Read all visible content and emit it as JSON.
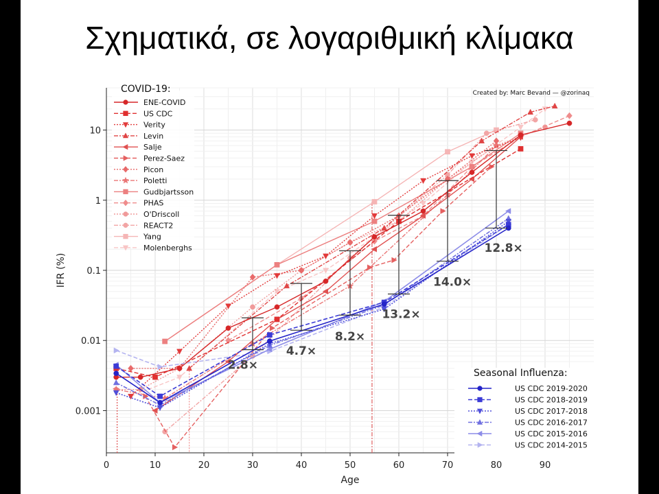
{
  "slide": {
    "title": "Σχηματικά, σε λογαριθμική κλίμακα"
  },
  "chart_data": {
    "type": "line",
    "xlabel": "Age",
    "ylabel": "IFR (%)",
    "xlim": [
      0,
      100
    ],
    "ylim": [
      0.00025,
      40
    ],
    "yscale": "log",
    "x_ticks": [
      0,
      10,
      20,
      30,
      40,
      50,
      60,
      70,
      80,
      90
    ],
    "y_ticks": [
      {
        "value": 0.001,
        "label": "0.001"
      },
      {
        "value": 0.01,
        "label": "0.01"
      },
      {
        "value": 0.1,
        "label": "0.1"
      },
      {
        "value": 1,
        "label": "1"
      },
      {
        "value": 10,
        "label": "10"
      }
    ],
    "grid": true,
    "credit": "Created by: Marc Bevand — @zorinaq",
    "covid_legend_title": "COVID-19:",
    "flu_legend_title": "Seasonal Influenza:",
    "covid_series": [
      {
        "name": "ENE-COVID",
        "color": "#d62728",
        "dash": "",
        "marker": "circle",
        "x": [
          2,
          7,
          15,
          25,
          35,
          45,
          55,
          65,
          75,
          85,
          95
        ],
        "y": [
          0.003,
          0.003,
          0.004,
          0.015,
          0.03,
          0.07,
          0.3,
          0.7,
          2.5,
          8.5,
          12.5
        ]
      },
      {
        "name": "US CDC",
        "color": "#e03030",
        "dash": "6,3",
        "marker": "square",
        "x": [
          2,
          10,
          35,
          60,
          85
        ],
        "y": [
          0.004,
          0.003,
          0.02,
          0.5,
          5.4
        ]
      },
      {
        "name": "Verity",
        "color": "#e23a3a",
        "dash": "2,2",
        "marker": "tri-down",
        "x": [
          5,
          15,
          25,
          35,
          45,
          55,
          65,
          75,
          85
        ],
        "y": [
          0.0016,
          0.007,
          0.031,
          0.084,
          0.16,
          0.6,
          1.9,
          4.3,
          7.8
        ]
      },
      {
        "name": "Levin",
        "color": "#e04545",
        "dash": "6,2,2,2",
        "marker": "tri-up",
        "x": [
          17,
          37,
          57,
          77,
          87,
          92
        ],
        "y": [
          0.004,
          0.06,
          0.4,
          7,
          18,
          22
        ]
      },
      {
        "name": "Salje",
        "color": "#e05050",
        "dash": "",
        "marker": "tri-left",
        "x": [
          10,
          25,
          35,
          45,
          55,
          65,
          75,
          85
        ],
        "y": [
          0.001,
          0.005,
          0.02,
          0.05,
          0.2,
          0.6,
          2,
          8
        ]
      },
      {
        "name": "Perez-Saez",
        "color": "#e56060",
        "dash": "6,3",
        "marker": "tri-right",
        "x": [
          8,
          14,
          34,
          54,
          59,
          69,
          79
        ],
        "y": [
          0.0016,
          0.0003,
          0.015,
          0.11,
          0.14,
          0.7,
          3
        ]
      },
      {
        "name": "Picon",
        "color": "#e86a6a",
        "dash": "2,2",
        "marker": "diamond",
        "x": [
          5,
          15,
          30,
          40,
          50,
          60,
          70,
          80
        ],
        "y": [
          0.004,
          0.004,
          0.08,
          0.1,
          0.25,
          0.6,
          2,
          7
        ]
      },
      {
        "name": "Poletti",
        "color": "#ea7575",
        "dash": "6,2,2,2",
        "marker": "star",
        "x": [
          2,
          12,
          30,
          50,
          70,
          80
        ],
        "y": [
          0.002,
          0.0015,
          0.009,
          0.06,
          1.2,
          6
        ]
      },
      {
        "name": "Gudbjartsson",
        "color": "#ec8080",
        "dash": "",
        "marker": "square",
        "x": [
          12,
          35,
          55,
          75,
          85
        ],
        "y": [
          0.0097,
          0.12,
          0.5,
          3,
          9
        ]
      },
      {
        "name": "PHAS",
        "color": "#ef8c8c",
        "dash": "6,3",
        "marker": "diamond",
        "x": [
          25,
          40,
          55,
          65,
          75,
          85,
          95
        ],
        "y": [
          0.01,
          0.04,
          0.26,
          0.6,
          3,
          8,
          16
        ]
      },
      {
        "name": "O'Driscoll",
        "color": "#f09a9a",
        "dash": "2,2",
        "marker": "circle",
        "x": [
          2,
          7,
          15,
          30,
          40,
          50,
          60,
          70,
          80,
          90
        ],
        "y": [
          0.002,
          0.002,
          0.004,
          0.03,
          0.1,
          0.25,
          0.5,
          2,
          6,
          11
        ]
      },
      {
        "name": "REACT2",
        "color": "#f2a5a5",
        "dash": "6,2,2,2",
        "marker": "circle",
        "x": [
          12,
          30,
          50,
          70,
          78,
          88
        ],
        "y": [
          0.0005,
          0.006,
          0.15,
          2.3,
          9,
          14
        ]
      },
      {
        "name": "Yang",
        "color": "#f5b5b5",
        "dash": "",
        "marker": "square",
        "x": [
          12,
          35,
          55,
          70,
          80
        ],
        "y": [
          0.0097,
          0.12,
          0.95,
          4.9,
          10
        ]
      },
      {
        "name": "Molenberghs",
        "color": "#f8c5c5",
        "dash": "6,3",
        "marker": "tri-down",
        "x": [
          5,
          15,
          35,
          45,
          55,
          65,
          75,
          85,
          90
        ],
        "y": [
          0.0016,
          0.003,
          0.05,
          0.1,
          0.3,
          0.9,
          3.5,
          11,
          20
        ]
      }
    ],
    "flu_series": [
      {
        "name": "US CDC 2019-2020",
        "color": "#2424c8",
        "dash": "",
        "marker": "circle",
        "x": [
          2,
          11,
          33.5,
          57,
          82.5
        ],
        "y": [
          0.0034,
          0.0013,
          0.0098,
          0.033,
          0.4
        ]
      },
      {
        "name": "US CDC 2018-2019",
        "color": "#3b3bd6",
        "dash": "6,3",
        "marker": "square",
        "x": [
          2,
          11,
          33.5,
          57,
          82.5
        ],
        "y": [
          0.0043,
          0.0016,
          0.012,
          0.035,
          0.45
        ]
      },
      {
        "name": "US CDC 2017-2018",
        "color": "#5050da",
        "dash": "2,2",
        "marker": "tri-down",
        "x": [
          2,
          11,
          33.5,
          57,
          82.5
        ],
        "y": [
          0.0018,
          0.0011,
          0.009,
          0.028,
          0.5
        ]
      },
      {
        "name": "US CDC 2016-2017",
        "color": "#7070e0",
        "dash": "6,2,2,2",
        "marker": "tri-up",
        "x": [
          2,
          11,
          33.5,
          57,
          82.5
        ],
        "y": [
          0.0025,
          0.0012,
          0.0085,
          0.032,
          0.55
        ]
      },
      {
        "name": "US CDC 2015-2016",
        "color": "#8c8ce8",
        "dash": "",
        "marker": "tri-left",
        "x": [
          2,
          11,
          33.5,
          57,
          82.5
        ],
        "y": [
          0.0045,
          0.0013,
          0.0075,
          0.036,
          0.7
        ]
      },
      {
        "name": "US CDC 2014-2015",
        "color": "#b4b4f0",
        "dash": "6,3",
        "marker": "tri-right",
        "x": [
          2,
          11,
          33.5,
          57,
          82.5
        ],
        "y": [
          0.0072,
          0.0042,
          0.007,
          0.03,
          0.45
        ]
      }
    ],
    "ratio_bars": [
      {
        "x": 30,
        "low": 0.0074,
        "high": 0.021,
        "label": "2.8×",
        "label_x": 28,
        "label_y": 0.0045
      },
      {
        "x": 40,
        "low": 0.014,
        "high": 0.065,
        "label": "4.7×",
        "label_x": 40,
        "label_y": 0.0072
      },
      {
        "x": 50,
        "low": 0.023,
        "high": 0.19,
        "label": "8.2×",
        "label_x": 50,
        "label_y": 0.0115
      },
      {
        "x": 60,
        "low": 0.046,
        "high": 0.61,
        "label": "13.2×",
        "label_x": 60.5,
        "label_y": 0.024
      },
      {
        "x": 70,
        "low": 0.135,
        "high": 1.9,
        "label": "14.0×",
        "label_x": 71,
        "label_y": 0.069
      },
      {
        "x": 80,
        "low": 0.4,
        "high": 5.1,
        "label": "12.8×",
        "label_x": 81.5,
        "label_y": 0.21
      }
    ],
    "vertical_markers": [
      {
        "x": 2.2,
        "color": "#e05050",
        "dash": "2,2",
        "from": 0.00025,
        "to": 0.0019
      },
      {
        "x": 17,
        "color": "#f09090",
        "dash": "2,2",
        "from": 0.00025,
        "to": 0.0037
      },
      {
        "x": 54.5,
        "color": "#e06060",
        "dash": "6,2,2,2",
        "from": 0.00025,
        "to": 0.95
      }
    ]
  }
}
